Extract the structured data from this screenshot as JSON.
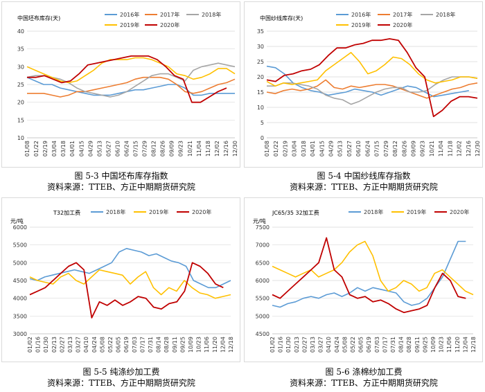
{
  "captions": [
    {
      "figure": "图 5-3  中国坯布库存指数",
      "source": "资料来源：TTEB、方正中期期货研究院"
    },
    {
      "figure": "图 5-4  中国纱线库存指数",
      "source": "资料来源：TTEB、方正中期期货研究院"
    },
    {
      "figure": "图 5-5  纯涤纱加工费",
      "source": "资料来源：TTEB、方正中期期货研究院"
    },
    {
      "figure": "图 5-6  涤棉纱加工费",
      "source": "资料来源：TTEB、方正中期期货研究院"
    }
  ],
  "chart_data": [
    {
      "type": "line",
      "title": "中国坯布库存(天)",
      "ylim": [
        10,
        40
      ],
      "yticks": [
        10,
        15,
        20,
        25,
        30,
        35,
        40
      ],
      "xticks": [
        "01/08",
        "01/22",
        "02/19",
        "03/04",
        "03/18",
        "04/01",
        "04/15",
        "04/29",
        "05/13",
        "05/27",
        "06/10",
        "06/24",
        "07/15",
        "07/29",
        "08/12",
        "08/26",
        "09/09",
        "09/23",
        "10/21",
        "11/04",
        "11/18",
        "12/02",
        "12/16",
        "12/30"
      ],
      "series": [
        {
          "name": "2016年",
          "color": "#5b9bd5",
          "values": [
            27,
            26,
            25,
            25,
            24,
            23.5,
            23,
            22.5,
            22,
            22,
            22,
            22.5,
            23,
            23.5,
            23.5,
            24,
            24.5,
            25,
            25,
            24,
            22,
            22,
            22.5,
            22.5,
            22.5,
            22.5
          ]
        },
        {
          "name": "2017年",
          "color": "#ed7d31",
          "values": [
            22.5,
            22.5,
            22.5,
            22,
            21.5,
            22,
            23,
            23,
            23.5,
            24,
            24.5,
            25,
            25.5,
            26.5,
            27,
            27,
            27,
            26.5,
            25,
            23,
            22.5,
            23,
            24,
            25,
            25.5,
            26.5
          ]
        },
        {
          "name": "2018年",
          "color": "#a5a5a5",
          "values": [
            27,
            27.5,
            27.5,
            27,
            26.5,
            25.5,
            24,
            23,
            22.5,
            22,
            21.5,
            22,
            23,
            24.5,
            26,
            27.5,
            28,
            28,
            27,
            26,
            29,
            30,
            30.5,
            31,
            30.5,
            30
          ]
        },
        {
          "name": "2019年",
          "color": "#ffc000",
          "values": [
            30,
            29,
            28,
            27,
            26,
            25.5,
            26,
            27.5,
            29,
            31,
            32,
            32,
            32,
            32.5,
            32.5,
            32,
            31,
            30,
            28,
            27.5,
            26.5,
            27,
            28,
            29.5,
            29.5,
            28
          ]
        },
        {
          "name": "2020年",
          "color": "#c00000",
          "values": [
            27,
            27,
            27.5,
            26.5,
            25.5,
            26,
            28,
            30.5,
            31,
            31.5,
            32,
            32.5,
            33,
            33,
            33,
            32,
            30,
            27.5,
            26.5,
            20,
            20,
            21.5,
            23,
            24
          ]
        }
      ]
    },
    {
      "type": "line",
      "title": "中国纱线库存(天)",
      "ylim": [
        0,
        35
      ],
      "yticks": [
        0,
        5,
        10,
        15,
        20,
        25,
        30,
        35
      ],
      "xticks": [
        "01/08",
        "01/22",
        "02/19",
        "03/04",
        "03/18",
        "04/01",
        "04/15",
        "04/29",
        "05/13",
        "05/27",
        "06/10",
        "06/24",
        "07/15",
        "07/29",
        "08/12",
        "08/26",
        "09/09",
        "09/23",
        "10/21",
        "11/04",
        "11/18",
        "12/02",
        "12/16",
        "12/30"
      ],
      "series": [
        {
          "name": "2016年",
          "color": "#5b9bd5",
          "values": [
            23.5,
            23,
            21,
            18,
            16.5,
            15.5,
            15,
            14,
            14.5,
            15,
            16,
            15.5,
            15,
            14,
            15,
            16,
            17,
            16.5,
            15,
            13.5,
            14,
            14.5,
            15,
            15.5
          ]
        },
        {
          "name": "2017年",
          "color": "#ed7d31",
          "values": [
            15,
            14.5,
            15.5,
            16,
            15.5,
            16,
            17,
            19,
            16.5,
            16,
            17,
            16.5,
            17,
            17.5,
            17.5,
            17,
            16,
            15,
            14,
            13,
            14,
            15,
            16,
            16.5,
            17.5,
            18
          ]
        },
        {
          "name": "2018年",
          "color": "#a5a5a5",
          "values": [
            17,
            17,
            18,
            18,
            17.5,
            17,
            16,
            14,
            13,
            12.5,
            11,
            12,
            13.5,
            15,
            16,
            16.5,
            16.5,
            15,
            15,
            15.5,
            17.5,
            19,
            20,
            20,
            20,
            19.5
          ]
        },
        {
          "name": "2019年",
          "color": "#ffc000",
          "values": [
            18.5,
            17,
            18,
            17.5,
            18,
            18.5,
            19,
            22,
            24,
            26,
            28,
            25,
            21,
            22,
            24,
            26.5,
            26,
            24,
            21,
            19,
            18,
            18.5,
            19,
            20,
            20,
            19.5
          ]
        },
        {
          "name": "2020年",
          "color": "#c00000",
          "values": [
            19,
            18.5,
            20.5,
            21,
            22,
            22.5,
            24,
            27,
            29.5,
            29.5,
            30.5,
            31,
            32,
            32,
            32.5,
            32,
            28,
            23,
            20,
            7,
            9,
            12,
            13.5,
            13.5,
            13
          ]
        }
      ]
    },
    {
      "type": "line",
      "title": "T32加工费",
      "unit": "元/吨",
      "ylim": [
        3000,
        6000
      ],
      "yticks": [
        3000,
        3500,
        4000,
        4500,
        5000,
        5500,
        6000
      ],
      "xticks": [
        "01/02",
        "01/16",
        "01/30",
        "02/13",
        "02/27",
        "03/13",
        "03/27",
        "04/10",
        "04/24",
        "05/08",
        "05/22",
        "06/05",
        "06/19",
        "07/03",
        "07/17",
        "07/31",
        "08/14",
        "08/28",
        "09/11",
        "09/25",
        "10/09",
        "10/23",
        "11/06",
        "11/20",
        "12/04",
        "12/18"
      ],
      "series": [
        {
          "name": "2018年",
          "color": "#5b9bd5",
          "values": [
            4550,
            4500,
            4600,
            4650,
            4700,
            4750,
            4800,
            4750,
            4700,
            4800,
            4900,
            5000,
            5300,
            5400,
            5350,
            5300,
            5200,
            5250,
            5150,
            5050,
            5000,
            4900,
            4500,
            4400,
            4300,
            4300,
            4400,
            4500
          ]
        },
        {
          "name": "2019年",
          "color": "#ffc000",
          "values": [
            4600,
            4500,
            4450,
            4400,
            4600,
            4700,
            4500,
            4400,
            4600,
            4800,
            4750,
            4700,
            4650,
            4400,
            4600,
            4750,
            4300,
            4100,
            4300,
            4200,
            4500,
            4300,
            4150,
            4100,
            4000,
            4050,
            4100
          ]
        },
        {
          "name": "2020年",
          "color": "#c00000",
          "values": [
            4100,
            4200,
            4300,
            4500,
            4700,
            4900,
            5000,
            4800,
            3450,
            3900,
            3800,
            3950,
            3800,
            3900,
            4050,
            4000,
            3750,
            3700,
            3850,
            3900,
            4200,
            5000,
            4900,
            4700,
            4400,
            4300
          ]
        }
      ]
    },
    {
      "type": "line",
      "title": "JC65/35 32加工费",
      "unit": "元/吨",
      "ylim": [
        4500,
        7500
      ],
      "yticks": [
        4500,
        5000,
        5500,
        6000,
        6500,
        7000,
        7500
      ],
      "xticks": [
        "01/02",
        "01/16",
        "01/30",
        "02/13",
        "02/27",
        "03/13",
        "03/27",
        "04/10",
        "04/24",
        "05/08",
        "05/22",
        "06/05",
        "06/19",
        "07/03",
        "07/17",
        "07/31",
        "08/14",
        "08/28",
        "09/11",
        "09/25",
        "10/09",
        "10/23",
        "11/06",
        "11/20",
        "12/04",
        "12/18"
      ],
      "series": [
        {
          "name": "2018年",
          "color": "#5b9bd5",
          "values": [
            5300,
            5250,
            5350,
            5400,
            5500,
            5550,
            5500,
            5600,
            5650,
            5550,
            5650,
            5800,
            5700,
            5800,
            5750,
            5700,
            5650,
            5400,
            5300,
            5350,
            5500,
            5800,
            6100,
            6600,
            7100,
            7100
          ]
        },
        {
          "name": "2019年",
          "color": "#ffc000",
          "values": [
            6400,
            6300,
            6200,
            6100,
            6200,
            6300,
            6100,
            6200,
            6300,
            6500,
            6800,
            7000,
            7100,
            6700,
            6000,
            5700,
            5800,
            6000,
            5900,
            5700,
            5800,
            6200,
            6300,
            6100,
            5900,
            5700,
            5600
          ]
        },
        {
          "name": "2020年",
          "color": "#c00000",
          "values": [
            5600,
            5500,
            5700,
            5900,
            6100,
            6300,
            6500,
            7200,
            6300,
            6100,
            5600,
            5500,
            5550,
            5400,
            5450,
            5350,
            5200,
            5100,
            5150,
            5200,
            5300,
            5800,
            6200,
            6000,
            5550,
            5500
          ]
        }
      ]
    }
  ]
}
